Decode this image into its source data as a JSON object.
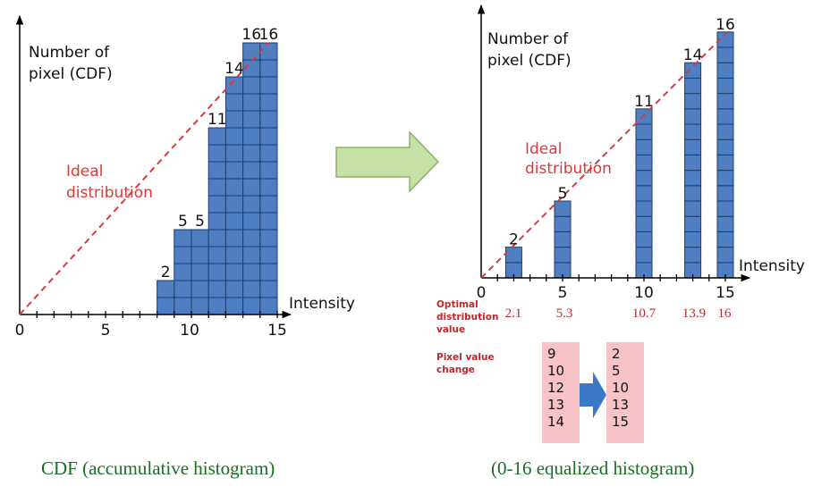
{
  "left_chart": {
    "ylabel": [
      "Number of",
      "pixel (CDF)"
    ],
    "xlabel": "Intensity",
    "ideal_label": [
      "Ideal",
      "distribution"
    ],
    "x_ticks": [
      "0",
      "5",
      "10",
      "15"
    ],
    "caption": "CDF (accumulative histogram)"
  },
  "right_chart": {
    "ylabel": [
      "Number of",
      "pixel (CDF)"
    ],
    "xlabel": "Intensity",
    "ideal_label": [
      "Ideal",
      "distribution"
    ],
    "x_ticks": [
      "0",
      "5",
      "10",
      "15"
    ],
    "optimal_label": [
      "Optimal",
      "distribution",
      "value"
    ],
    "optimal_values": [
      "2.1",
      "5.3",
      "10.7",
      "13.9",
      "16"
    ],
    "pixel_change_label": [
      "Pixel value",
      "change"
    ],
    "pixel_before": [
      "9",
      "10",
      "12",
      "13",
      "14"
    ],
    "pixel_after": [
      "2",
      "5",
      "10",
      "13",
      "15"
    ],
    "caption": "(0-16 equalized histogram)"
  },
  "colors": {
    "bar_fill": "#4f7ec3",
    "bar_stroke": "#1f3e6e",
    "ideal_line": "#d93a3a",
    "arrow_green": "#c5e0a5",
    "arrow_green_stroke": "#8bb26a",
    "change_box": "#f7c3c6",
    "change_arrow": "#3b78c8",
    "caption": "#1a6e24"
  },
  "chart_data": [
    {
      "type": "bar",
      "title": "CDF (accumulative histogram)",
      "xlabel": "Intensity",
      "ylabel": "Number of pixel (CDF)",
      "xlim": [
        0,
        15
      ],
      "x": [
        9,
        10,
        11,
        12,
        13,
        14,
        15
      ],
      "values": [
        2,
        5,
        5,
        11,
        14,
        16,
        16
      ],
      "data_labels": [
        "2",
        "5",
        "5",
        "11",
        "14",
        "16",
        "16"
      ],
      "reference_line": {
        "name": "Ideal distribution",
        "from": [
          0,
          0
        ],
        "to": [
          15,
          16
        ]
      }
    },
    {
      "type": "bar",
      "title": "(0-16 equalized histogram)",
      "xlabel": "Intensity",
      "ylabel": "Number of pixel (CDF)",
      "xlim": [
        0,
        15
      ],
      "x": [
        2,
        5,
        10,
        13,
        15
      ],
      "values": [
        2,
        5,
        11,
        14,
        16
      ],
      "data_labels": [
        "2",
        "5",
        "11",
        "14",
        "16"
      ],
      "optimal_values": [
        2.1,
        5.3,
        10.7,
        13.9,
        16
      ],
      "reference_line": {
        "name": "Ideal distribution",
        "from": [
          0,
          0
        ],
        "to": [
          15,
          16
        ]
      }
    }
  ]
}
